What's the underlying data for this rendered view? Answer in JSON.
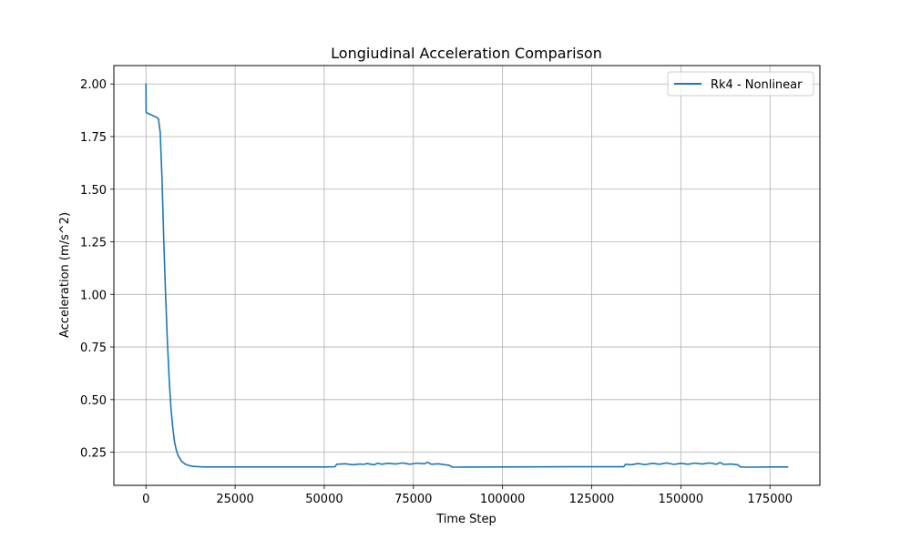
{
  "chart_data": {
    "type": "line",
    "title": "Longiudinal Acceleration Comparison",
    "xlabel": "Time Step",
    "ylabel": "Acceleration (m/s^2)",
    "xlim": [
      -9000,
      189000
    ],
    "ylim": [
      0.0925,
      2.0875
    ],
    "xticks": [
      0,
      25000,
      50000,
      75000,
      100000,
      125000,
      150000,
      175000
    ],
    "xtick_labels": [
      "0",
      "25000",
      "50000",
      "75000",
      "100000",
      "125000",
      "150000",
      "175000"
    ],
    "yticks": [
      0.25,
      0.5,
      0.75,
      1.0,
      1.25,
      1.5,
      1.75,
      2.0
    ],
    "ytick_labels": [
      "0.25",
      "0.50",
      "0.75",
      "1.00",
      "1.25",
      "1.50",
      "1.75",
      "2.00"
    ],
    "grid": true,
    "legend_position": "upper right",
    "series": [
      {
        "name": "Rk4 - Nonlinear",
        "color": "#1f77b4",
        "x": [
          0,
          50,
          300,
          1000,
          2000,
          3000,
          3500,
          4000,
          4500,
          5000,
          5500,
          6000,
          6500,
          7000,
          7500,
          8000,
          8500,
          9000,
          10000,
          11000,
          12000,
          13000,
          14000,
          15000,
          17000,
          20000,
          25000,
          50000,
          53000,
          53500,
          56000,
          58000,
          60000,
          61000,
          62000,
          64000,
          65000,
          66000,
          68000,
          70000,
          72000,
          74000,
          76000,
          78000,
          79000,
          80000,
          82000,
          84000,
          85000,
          86000,
          87000,
          100000,
          120000,
          134000,
          134500,
          136000,
          138000,
          140000,
          142000,
          144000,
          146000,
          148000,
          150000,
          152000,
          154000,
          156000,
          158000,
          160000,
          161000,
          162000,
          164000,
          166000,
          166500,
          167000,
          170000,
          175000,
          180000
        ],
        "y": [
          2.0,
          1.865,
          1.862,
          1.857,
          1.849,
          1.841,
          1.835,
          1.77,
          1.55,
          1.25,
          1.0,
          0.78,
          0.6,
          0.46,
          0.37,
          0.3,
          0.26,
          0.235,
          0.207,
          0.193,
          0.187,
          0.183,
          0.182,
          0.181,
          0.18,
          0.18,
          0.18,
          0.18,
          0.181,
          0.193,
          0.195,
          0.19,
          0.194,
          0.192,
          0.196,
          0.19,
          0.198,
          0.193,
          0.197,
          0.194,
          0.199,
          0.193,
          0.198,
          0.195,
          0.202,
          0.193,
          0.195,
          0.19,
          0.188,
          0.179,
          0.179,
          0.18,
          0.181,
          0.181,
          0.193,
          0.19,
          0.196,
          0.191,
          0.197,
          0.193,
          0.199,
          0.192,
          0.197,
          0.193,
          0.198,
          0.194,
          0.199,
          0.193,
          0.201,
          0.192,
          0.194,
          0.19,
          0.183,
          0.179,
          0.179,
          0.18,
          0.18
        ]
      }
    ]
  }
}
